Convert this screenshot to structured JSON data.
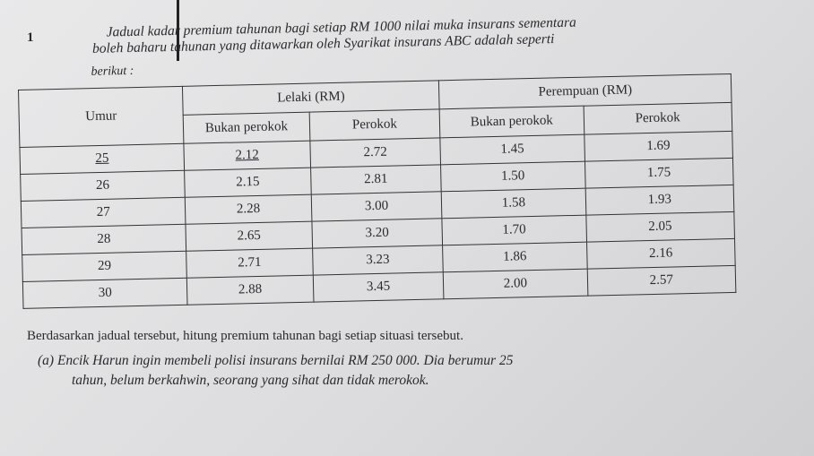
{
  "question_number": "1",
  "intro": {
    "line1": "Jadual kadar premium tahunan bagi setiap RM 1000 nilai muka insurans sementara",
    "line2": "boleh baharu tahunan yang ditawarkan oleh Syarikat insurans ABC adalah seperti",
    "line3": "berikut :"
  },
  "table": {
    "headers": {
      "age": "Umur",
      "male": "Lelaki (RM)",
      "female": "Perempuan (RM)",
      "non_smoker": "Bukan perokok",
      "smoker": "Perokok"
    },
    "rows": [
      {
        "age": "25",
        "male_non_smoker": "2.12",
        "male_smoker": "2.72",
        "female_non_smoker": "1.45",
        "female_smoker": "1.69"
      },
      {
        "age": "26",
        "male_non_smoker": "2.15",
        "male_smoker": "2.81",
        "female_non_smoker": "1.50",
        "female_smoker": "1.75"
      },
      {
        "age": "27",
        "male_non_smoker": "2.28",
        "male_smoker": "3.00",
        "female_non_smoker": "1.58",
        "female_smoker": "1.93"
      },
      {
        "age": "28",
        "male_non_smoker": "2.65",
        "male_smoker": "3.20",
        "female_non_smoker": "1.70",
        "female_smoker": "2.05"
      },
      {
        "age": "29",
        "male_non_smoker": "2.71",
        "male_smoker": "3.23",
        "female_non_smoker": "1.86",
        "female_smoker": "2.16"
      },
      {
        "age": "30",
        "male_non_smoker": "2.88",
        "male_smoker": "3.45",
        "female_non_smoker": "2.00",
        "female_smoker": "2.57"
      }
    ]
  },
  "caption": "Berdasarkan jadual tersebut, hitung premium tahunan bagi setiap situasi tersebut.",
  "part_a": {
    "line1": "(a) Encik Harun ingin membeli polisi insurans bernilai RM 250 000. Dia berumur 25",
    "line2": "tahun, belum berkahwin, seorang yang sihat dan tidak merokok."
  }
}
